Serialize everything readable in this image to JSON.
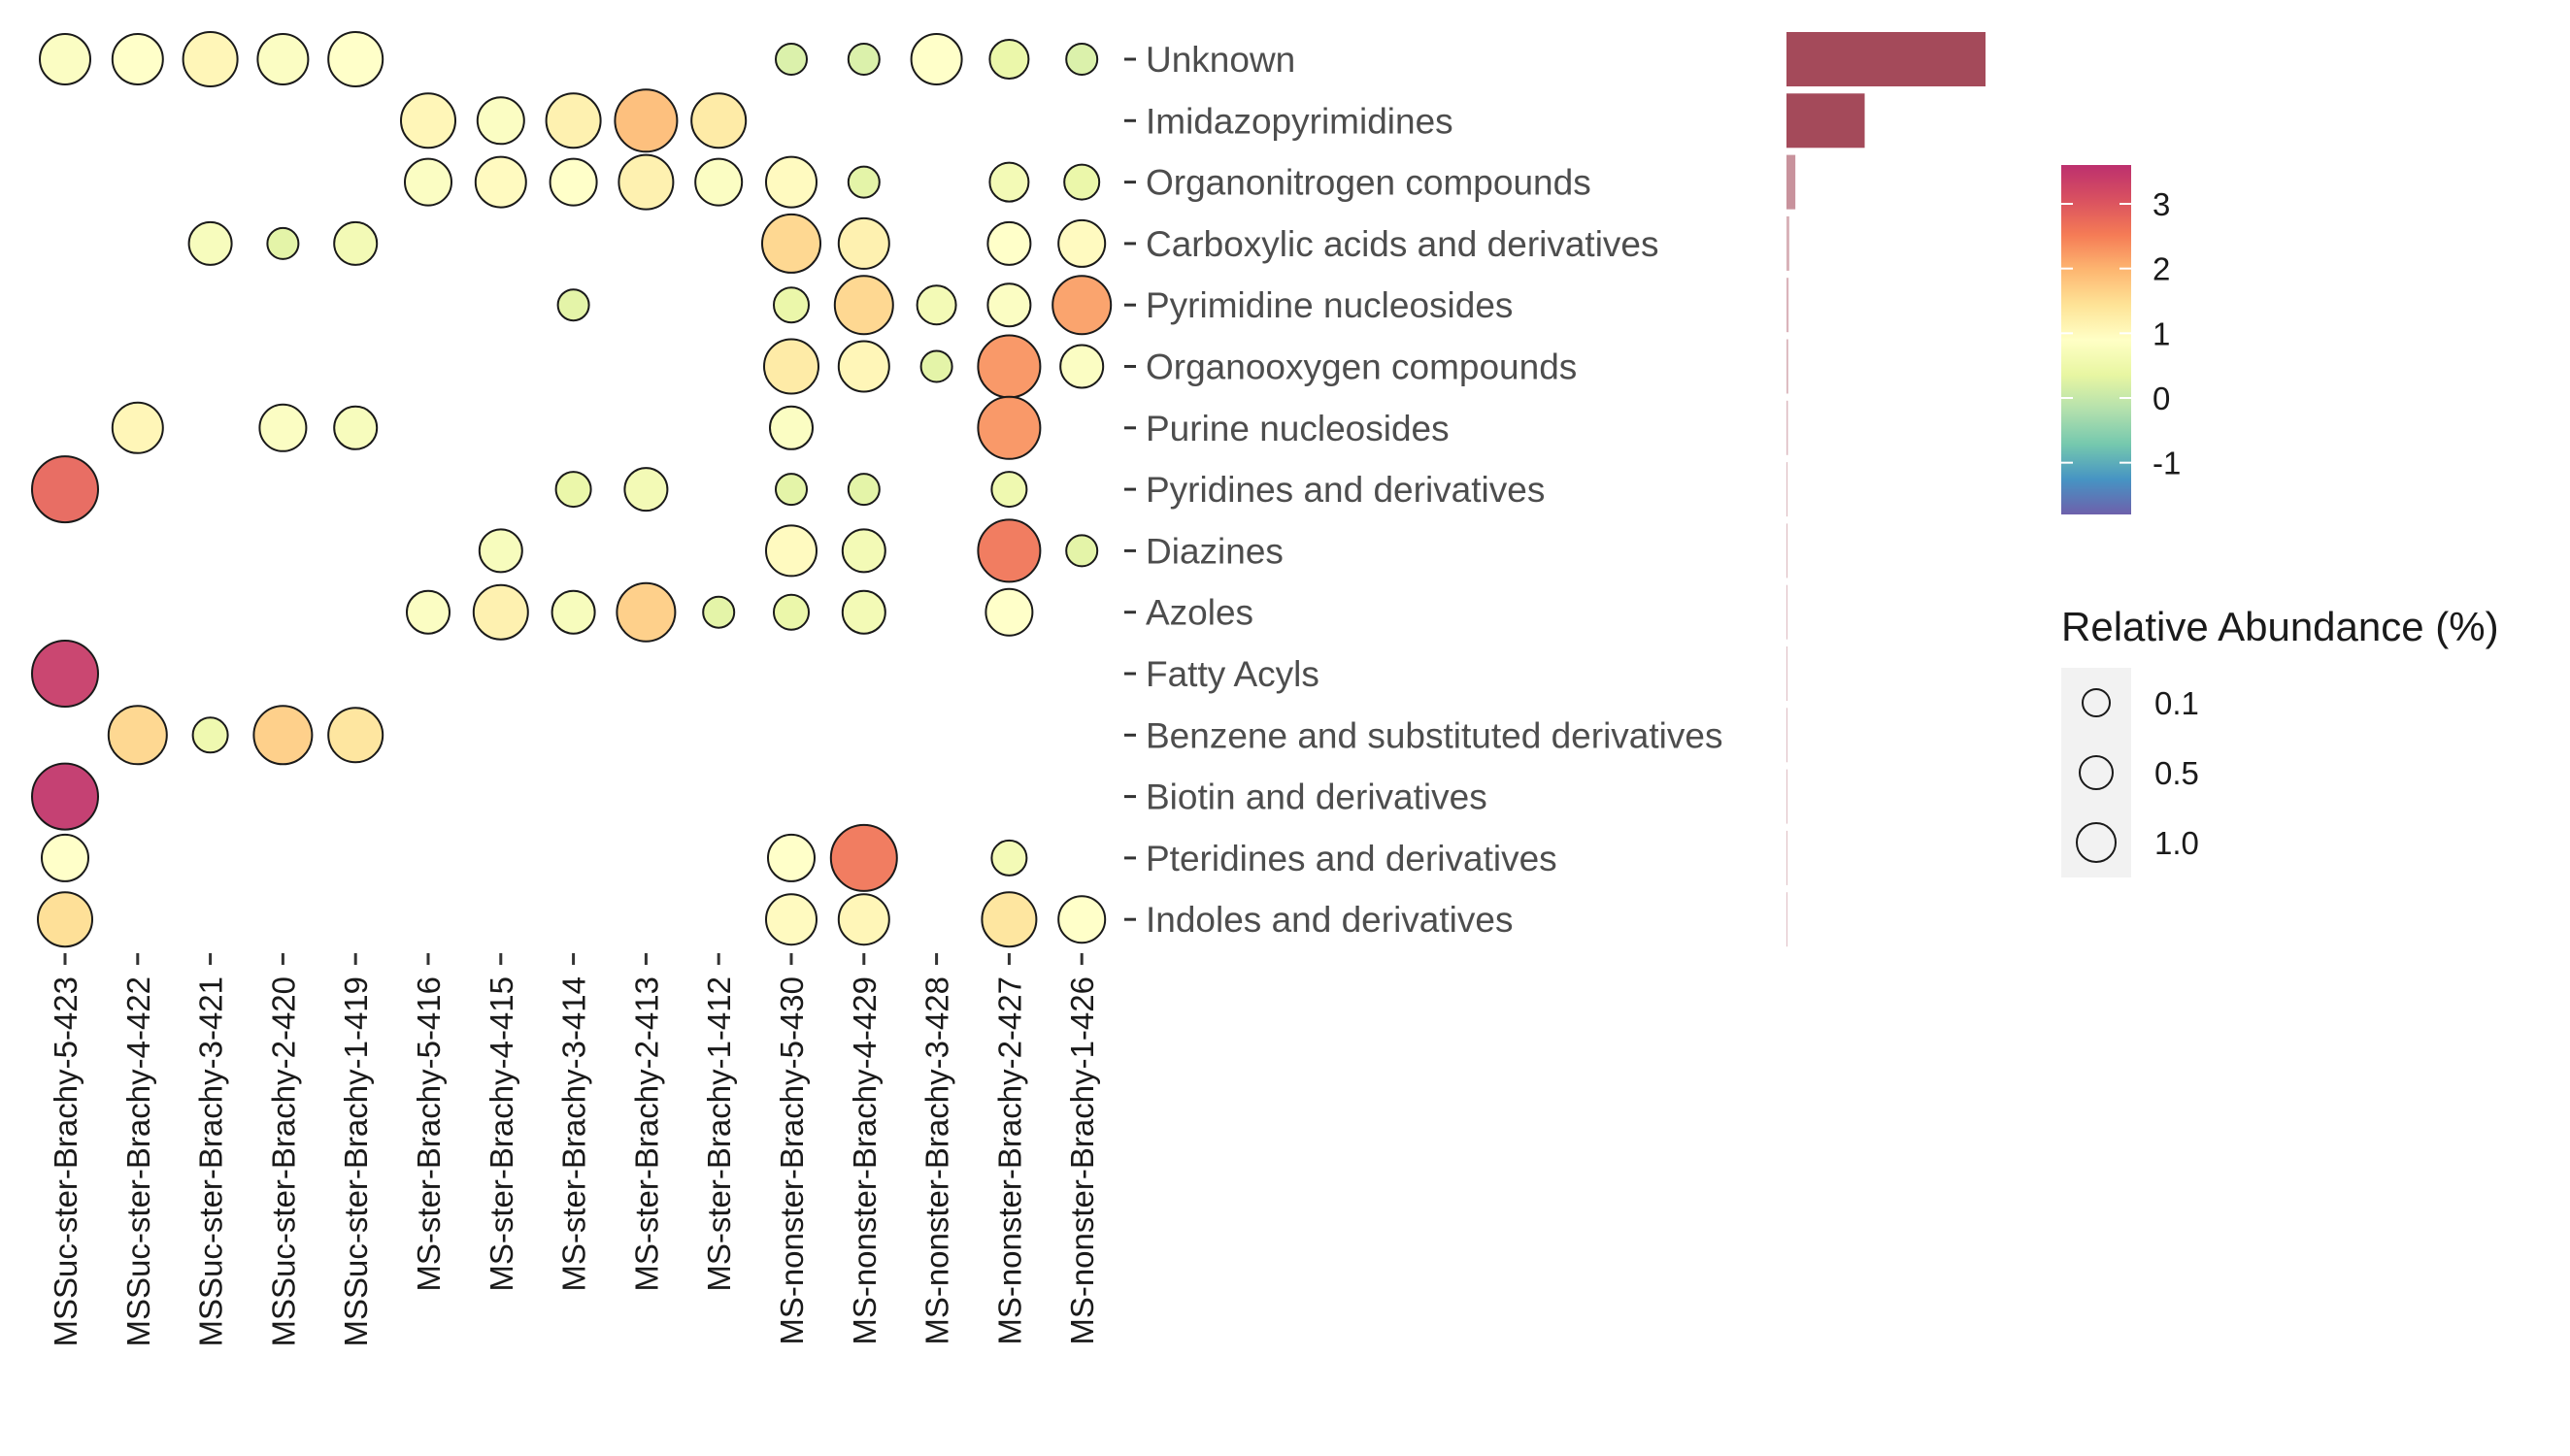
{
  "chart_data": {
    "type": "bubble-heatmap",
    "categories": [
      "Unknown",
      "Imidazopyrimidines",
      "Organonitrogen compounds",
      "Carboxylic acids and derivatives",
      "Pyrimidine nucleosides",
      "Organooxygen compounds",
      "Purine nucleosides",
      "Pyridines and derivatives",
      "Diazines",
      "Azoles",
      "Fatty Acyls",
      "Benzene and substituted derivatives",
      "Biotin and derivatives",
      "Pteridines and derivatives",
      "Indoles and derivatives"
    ],
    "samples": [
      "MSSuc-ster-Brachy-5-423",
      "MSSuc-ster-Brachy-4-422",
      "MSSuc-ster-Brachy-3-421",
      "MSSuc-ster-Brachy-2-420",
      "MSSuc-ster-Brachy-1-419",
      "MS-ster-Brachy-5-416",
      "MS-ster-Brachy-4-415",
      "MS-ster-Brachy-3-414",
      "MS-ster-Brachy-2-413",
      "MS-ster-Brachy-1-412",
      "MS-nonster-Brachy-5-430",
      "MS-nonster-Brachy-4-429",
      "MS-nonster-Brachy-3-428",
      "MS-nonster-Brachy-2-427",
      "MS-nonster-Brachy-1-426"
    ],
    "points": [
      {
        "category": "Unknown",
        "sample": 0,
        "color_value": 0.8,
        "size": 0.7
      },
      {
        "category": "Unknown",
        "sample": 1,
        "color_value": 0.9,
        "size": 0.7
      },
      {
        "category": "Unknown",
        "sample": 2,
        "color_value": 1.1,
        "size": 0.8
      },
      {
        "category": "Unknown",
        "sample": 3,
        "color_value": 0.8,
        "size": 0.7
      },
      {
        "category": "Unknown",
        "sample": 4,
        "color_value": 0.9,
        "size": 0.8
      },
      {
        "category": "Unknown",
        "sample": 10,
        "color_value": 0.2,
        "size": 0.2
      },
      {
        "category": "Unknown",
        "sample": 11,
        "color_value": 0.2,
        "size": 0.2
      },
      {
        "category": "Unknown",
        "sample": 12,
        "color_value": 0.9,
        "size": 0.7
      },
      {
        "category": "Unknown",
        "sample": 13,
        "color_value": 0.4,
        "size": 0.4
      },
      {
        "category": "Unknown",
        "sample": 14,
        "color_value": 0.2,
        "size": 0.2
      },
      {
        "category": "Imidazopyrimidines",
        "sample": 5,
        "color_value": 1.1,
        "size": 0.8
      },
      {
        "category": "Imidazopyrimidines",
        "sample": 6,
        "color_value": 0.8,
        "size": 0.6
      },
      {
        "category": "Imidazopyrimidines",
        "sample": 7,
        "color_value": 1.2,
        "size": 0.8
      },
      {
        "category": "Imidazopyrimidines",
        "sample": 8,
        "color_value": 1.9,
        "size": 1.0
      },
      {
        "category": "Imidazopyrimidines",
        "sample": 9,
        "color_value": 1.3,
        "size": 0.8
      },
      {
        "category": "Organonitrogen compounds",
        "sample": 5,
        "color_value": 0.8,
        "size": 0.6
      },
      {
        "category": "Organonitrogen compounds",
        "sample": 6,
        "color_value": 1.0,
        "size": 0.7
      },
      {
        "category": "Organonitrogen compounds",
        "sample": 7,
        "color_value": 0.9,
        "size": 0.6
      },
      {
        "category": "Organonitrogen compounds",
        "sample": 8,
        "color_value": 1.2,
        "size": 0.8
      },
      {
        "category": "Organonitrogen compounds",
        "sample": 9,
        "color_value": 0.8,
        "size": 0.6
      },
      {
        "category": "Organonitrogen compounds",
        "sample": 10,
        "color_value": 1.0,
        "size": 0.7
      },
      {
        "category": "Organonitrogen compounds",
        "sample": 11,
        "color_value": 0.3,
        "size": 0.2
      },
      {
        "category": "Organonitrogen compounds",
        "sample": 13,
        "color_value": 0.6,
        "size": 0.4
      },
      {
        "category": "Organonitrogen compounds",
        "sample": 14,
        "color_value": 0.4,
        "size": 0.3
      },
      {
        "category": "Carboxylic acids and derivatives",
        "sample": 2,
        "color_value": 0.7,
        "size": 0.5
      },
      {
        "category": "Carboxylic acids and derivatives",
        "sample": 3,
        "color_value": 0.3,
        "size": 0.2
      },
      {
        "category": "Carboxylic acids and derivatives",
        "sample": 4,
        "color_value": 0.6,
        "size": 0.5
      },
      {
        "category": "Carboxylic acids and derivatives",
        "sample": 10,
        "color_value": 1.6,
        "size": 0.9
      },
      {
        "category": "Carboxylic acids and derivatives",
        "sample": 11,
        "color_value": 1.2,
        "size": 0.7
      },
      {
        "category": "Carboxylic acids and derivatives",
        "sample": 13,
        "color_value": 0.9,
        "size": 0.5
      },
      {
        "category": "Carboxylic acids and derivatives",
        "sample": 14,
        "color_value": 1.0,
        "size": 0.6
      },
      {
        "category": "Pyrimidine nucleosides",
        "sample": 7,
        "color_value": 0.3,
        "size": 0.2
      },
      {
        "category": "Pyrimidine nucleosides",
        "sample": 10,
        "color_value": 0.4,
        "size": 0.3
      },
      {
        "category": "Pyrimidine nucleosides",
        "sample": 11,
        "color_value": 1.6,
        "size": 0.9
      },
      {
        "category": "Pyrimidine nucleosides",
        "sample": 12,
        "color_value": 0.6,
        "size": 0.4
      },
      {
        "category": "Pyrimidine nucleosides",
        "sample": 13,
        "color_value": 0.8,
        "size": 0.5
      },
      {
        "category": "Pyrimidine nucleosides",
        "sample": 14,
        "color_value": 2.2,
        "size": 0.9
      },
      {
        "category": "Organooxygen compounds",
        "sample": 10,
        "color_value": 1.3,
        "size": 0.8
      },
      {
        "category": "Organooxygen compounds",
        "sample": 11,
        "color_value": 1.1,
        "size": 0.7
      },
      {
        "category": "Organooxygen compounds",
        "sample": 12,
        "color_value": 0.3,
        "size": 0.2
      },
      {
        "category": "Organooxygen compounds",
        "sample": 13,
        "color_value": 2.3,
        "size": 1.0
      },
      {
        "category": "Organooxygen compounds",
        "sample": 14,
        "color_value": 0.8,
        "size": 0.5
      },
      {
        "category": "Purine nucleosides",
        "sample": 1,
        "color_value": 1.1,
        "size": 0.7
      },
      {
        "category": "Purine nucleosides",
        "sample": 3,
        "color_value": 0.8,
        "size": 0.6
      },
      {
        "category": "Purine nucleosides",
        "sample": 4,
        "color_value": 0.7,
        "size": 0.5
      },
      {
        "category": "Purine nucleosides",
        "sample": 10,
        "color_value": 0.8,
        "size": 0.5
      },
      {
        "category": "Purine nucleosides",
        "sample": 13,
        "color_value": 2.3,
        "size": 1.0
      },
      {
        "category": "Pyridines and derivatives",
        "sample": 0,
        "color_value": 2.8,
        "size": 1.1
      },
      {
        "category": "Pyridines and derivatives",
        "sample": 7,
        "color_value": 0.4,
        "size": 0.3
      },
      {
        "category": "Pyridines and derivatives",
        "sample": 8,
        "color_value": 0.6,
        "size": 0.5
      },
      {
        "category": "Pyridines and derivatives",
        "sample": 10,
        "color_value": 0.3,
        "size": 0.2
      },
      {
        "category": "Pyridines and derivatives",
        "sample": 11,
        "color_value": 0.3,
        "size": 0.2
      },
      {
        "category": "Pyridines and derivatives",
        "sample": 13,
        "color_value": 0.5,
        "size": 0.3
      },
      {
        "category": "Diazines",
        "sample": 6,
        "color_value": 0.7,
        "size": 0.5
      },
      {
        "category": "Diazines",
        "sample": 10,
        "color_value": 1.0,
        "size": 0.7
      },
      {
        "category": "Diazines",
        "sample": 11,
        "color_value": 0.6,
        "size": 0.5
      },
      {
        "category": "Diazines",
        "sample": 13,
        "color_value": 2.6,
        "size": 1.0
      },
      {
        "category": "Diazines",
        "sample": 14,
        "color_value": 0.3,
        "size": 0.2
      },
      {
        "category": "Azoles",
        "sample": 5,
        "color_value": 0.8,
        "size": 0.5
      },
      {
        "category": "Azoles",
        "sample": 6,
        "color_value": 1.2,
        "size": 0.8
      },
      {
        "category": "Azoles",
        "sample": 7,
        "color_value": 0.7,
        "size": 0.5
      },
      {
        "category": "Azoles",
        "sample": 8,
        "color_value": 1.7,
        "size": 0.9
      },
      {
        "category": "Azoles",
        "sample": 9,
        "color_value": 0.3,
        "size": 0.2
      },
      {
        "category": "Azoles",
        "sample": 10,
        "color_value": 0.4,
        "size": 0.3
      },
      {
        "category": "Azoles",
        "sample": 11,
        "color_value": 0.6,
        "size": 0.5
      },
      {
        "category": "Azoles",
        "sample": 13,
        "color_value": 0.9,
        "size": 0.6
      },
      {
        "category": "Fatty Acyls",
        "sample": 0,
        "color_value": 3.4,
        "size": 1.1
      },
      {
        "category": "Benzene and substituted derivatives",
        "sample": 1,
        "color_value": 1.6,
        "size": 0.9
      },
      {
        "category": "Benzene and substituted derivatives",
        "sample": 2,
        "color_value": 0.5,
        "size": 0.3
      },
      {
        "category": "Benzene and substituted derivatives",
        "sample": 3,
        "color_value": 1.7,
        "size": 0.9
      },
      {
        "category": "Benzene and substituted derivatives",
        "sample": 4,
        "color_value": 1.4,
        "size": 0.8
      },
      {
        "category": "Biotin and derivatives",
        "sample": 0,
        "color_value": 3.5,
        "size": 1.1
      },
      {
        "category": "Pteridines and derivatives",
        "sample": 0,
        "color_value": 0.9,
        "size": 0.6
      },
      {
        "category": "Pteridines and derivatives",
        "sample": 10,
        "color_value": 0.9,
        "size": 0.6
      },
      {
        "category": "Pteridines and derivatives",
        "sample": 11,
        "color_value": 2.6,
        "size": 1.1
      },
      {
        "category": "Pteridines and derivatives",
        "sample": 13,
        "color_value": 0.6,
        "size": 0.3
      },
      {
        "category": "Indoles and derivatives",
        "sample": 0,
        "color_value": 1.5,
        "size": 0.8
      },
      {
        "category": "Indoles and derivatives",
        "sample": 10,
        "color_value": 1.0,
        "size": 0.7
      },
      {
        "category": "Indoles and derivatives",
        "sample": 11,
        "color_value": 1.1,
        "size": 0.7
      },
      {
        "category": "Indoles and derivatives",
        "sample": 13,
        "color_value": 1.4,
        "size": 0.8
      },
      {
        "category": "Indoles and derivatives",
        "sample": 14,
        "color_value": 0.9,
        "size": 0.6
      }
    ],
    "bar_values": [
      56,
      22,
      2.5,
      0.8,
      0.6,
      0.5,
      0.4,
      0.3,
      0.3,
      0.25,
      0.2,
      0.2,
      0.15,
      0.1,
      0.08
    ],
    "bar_color": "#a44a5a",
    "color_scale": {
      "ticks": [
        3,
        2,
        1,
        0,
        -1
      ],
      "tick_labels": [
        "3",
        "2",
        "1",
        "0",
        "-1"
      ],
      "range": [
        -1.8,
        3.6
      ],
      "palette": "Spectral",
      "colors": [
        "#5e4fa2",
        "#3288bd",
        "#66c2a5",
        "#abdda4",
        "#e6f598",
        "#ffffbf",
        "#fee08b",
        "#fdae61",
        "#f46d43",
        "#d53e4f",
        "#b5195e"
      ]
    },
    "size_legend": {
      "title": "Relative Abundance (%)",
      "values": [
        0.1,
        0.5,
        1.0
      ],
      "labels": [
        "0.1",
        "0.5",
        "1.0"
      ]
    }
  }
}
